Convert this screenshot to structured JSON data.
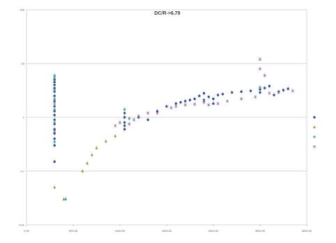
{
  "chart_data": {
    "type": "scatter",
    "title": "DC/R->6.79",
    "xlabel": "",
    "ylabel": "",
    "x_ticks": [
      "0.00",
      "500.00",
      "1000.00",
      "1500.00",
      "2000.00",
      "2500.00",
      "3000.00"
    ],
    "y_ticks": [
      "0.01",
      "0.1",
      "1",
      "10",
      "100"
    ],
    "xlim": [
      0,
      3000
    ],
    "ylim": [
      0.01,
      100
    ],
    "y_scale": "log",
    "grid": "horizontal",
    "legend_position": "right",
    "series": [
      {
        "name": "",
        "marker": "circle",
        "color": "#2f4f8f",
        "points": [
          [
            300,
            5
          ],
          [
            300,
            4.5
          ],
          [
            300,
            4
          ],
          [
            300,
            3.5
          ],
          [
            300,
            3
          ],
          [
            300,
            2.5
          ],
          [
            300,
            2
          ],
          [
            300,
            1.6
          ],
          [
            300,
            1.3
          ],
          [
            300,
            1.1
          ],
          [
            300,
            0.9
          ],
          [
            300,
            0.75
          ],
          [
            300,
            0.6
          ],
          [
            300,
            0.5
          ],
          [
            300,
            0.4
          ],
          [
            300,
            0.3
          ],
          [
            300,
            0.15
          ],
          [
            1050,
            1.2
          ],
          [
            1050,
            1
          ],
          [
            1050,
            0.8
          ],
          [
            1050,
            0.7
          ],
          [
            1050,
            0.6
          ],
          [
            1200,
            1
          ],
          [
            1300,
            0.9
          ],
          [
            1400,
            1.3
          ],
          [
            1500,
            1.6
          ],
          [
            1600,
            1.8
          ],
          [
            1650,
            1.9
          ],
          [
            1700,
            2
          ],
          [
            1750,
            2.1
          ],
          [
            1800,
            2.2
          ],
          [
            1850,
            2.5
          ],
          [
            1900,
            2.8
          ],
          [
            1900,
            2.1
          ],
          [
            1950,
            2.4
          ],
          [
            2000,
            2.2
          ],
          [
            2000,
            1.8
          ],
          [
            2050,
            2.6
          ],
          [
            2100,
            2.7
          ],
          [
            2200,
            2.9
          ],
          [
            2300,
            3
          ],
          [
            2400,
            3.1
          ],
          [
            2500,
            3.3
          ],
          [
            2500,
            2.9
          ],
          [
            2550,
            3.5
          ],
          [
            2600,
            3.8
          ],
          [
            2650,
            2.6
          ],
          [
            2700,
            3
          ],
          [
            2750,
            3.2
          ],
          [
            2800,
            3.4
          ]
        ]
      },
      {
        "name": "",
        "marker": "triangle",
        "color": "#9c8f3c",
        "points": [
          [
            300,
            0.05
          ],
          [
            400,
            0.03
          ],
          [
            600,
            0.1
          ],
          [
            650,
            0.14
          ],
          [
            700,
            0.2
          ],
          [
            750,
            0.27
          ],
          [
            850,
            0.36
          ],
          [
            950,
            0.45
          ]
        ]
      },
      {
        "name": "",
        "marker": "square",
        "color": "#48a8a8",
        "points": [
          [
            300,
            6
          ],
          [
            300,
            5.5
          ],
          [
            300,
            3.2
          ],
          [
            300,
            2.2
          ],
          [
            300,
            1.4
          ],
          [
            300,
            0.8
          ],
          [
            300,
            0.35
          ],
          [
            420,
            0.03
          ],
          [
            1050,
            1.4
          ],
          [
            1100,
            0.95
          ],
          [
            1900,
            2.0
          ],
          [
            2500,
            3.6
          ]
        ]
      },
      {
        "name": "",
        "marker": "x",
        "color": "#8c5ba8",
        "points": [
          [
            300,
            1.8
          ],
          [
            300,
            0.55
          ],
          [
            950,
            0.7
          ],
          [
            1000,
            0.8
          ],
          [
            1100,
            0.75
          ],
          [
            1150,
            0.9
          ],
          [
            1200,
            1.05
          ],
          [
            1300,
            1.2
          ],
          [
            1400,
            1.2
          ],
          [
            1550,
            1.5
          ],
          [
            1600,
            1.6
          ],
          [
            1700,
            1.7
          ],
          [
            1800,
            1.75
          ],
          [
            1900,
            1.9
          ],
          [
            1950,
            1.7
          ],
          [
            2050,
            1.8
          ],
          [
            2150,
            2.0
          ],
          [
            2300,
            2.2
          ],
          [
            2450,
            2.4
          ],
          [
            2500,
            12
          ],
          [
            2500,
            8
          ],
          [
            2550,
            6
          ],
          [
            2600,
            2.8
          ],
          [
            2700,
            2.9
          ],
          [
            2850,
            3.1
          ]
        ]
      }
    ]
  }
}
